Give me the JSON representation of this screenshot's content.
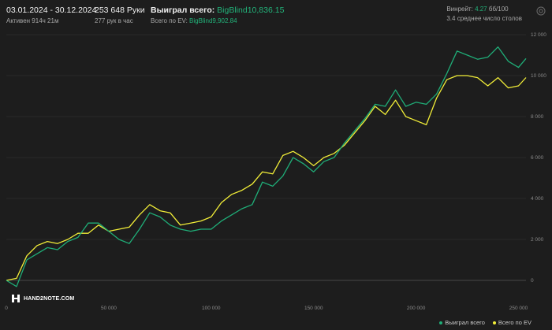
{
  "header": {
    "date_range": "03.01.2024 - 30.12.2024",
    "active_time": "Активен 914ч 21м",
    "hands": "253 648 Руки",
    "hands_per_hour": "277 рук в час",
    "won_label": "Выиграл всего:",
    "won_value": "BigBlind10,836.15",
    "ev_label": "Всего по EV:",
    "ev_value": "BigBlind9,902.84",
    "winrate_label": "Винрейт:",
    "winrate_value": "4.27",
    "winrate_unit": "бб/100",
    "avg_tables": "3.4 среднее число столов"
  },
  "logo": {
    "text": "HAND2NOTE.COM"
  },
  "colors": {
    "won": "#1fae78",
    "ev": "#f2ee38",
    "background": "#1d1d1d",
    "grid": "#2e2e2e",
    "axis_text": "#8a8a8a"
  },
  "chart_data": {
    "type": "line",
    "xlim": [
      0,
      253648
    ],
    "ylim": [
      -1000,
      12000
    ],
    "x_ticks": [
      "0",
      "50 000",
      "100 000",
      "150 000",
      "200 000",
      "250 000"
    ],
    "x_tick_values": [
      0,
      50000,
      100000,
      150000,
      200000,
      250000
    ],
    "y_ticks": [
      "0",
      "2 000",
      "4 000",
      "6 000",
      "8 000",
      "10 000",
      "12 000"
    ],
    "y_tick_values": [
      0,
      2000,
      4000,
      6000,
      8000,
      10000,
      12000
    ],
    "grid": true,
    "legend_position": "bottom-right",
    "series": [
      {
        "name": "Выиграл всего",
        "x": [
          0,
          5000,
          10000,
          15000,
          20000,
          25000,
          30000,
          35000,
          40000,
          45000,
          50000,
          55000,
          60000,
          65000,
          70000,
          75000,
          80000,
          85000,
          90000,
          95000,
          100000,
          105000,
          110000,
          115000,
          120000,
          125000,
          130000,
          135000,
          140000,
          145000,
          150000,
          155000,
          160000,
          165000,
          170000,
          175000,
          180000,
          185000,
          190000,
          195000,
          200000,
          205000,
          210000,
          215000,
          220000,
          225000,
          230000,
          235000,
          240000,
          245000,
          250000,
          253648
        ],
        "values": [
          0,
          -300,
          1000,
          1300,
          1600,
          1500,
          1900,
          2100,
          2800,
          2800,
          2400,
          2000,
          1800,
          2500,
          3300,
          3100,
          2700,
          2500,
          2400,
          2500,
          2500,
          2900,
          3200,
          3500,
          3700,
          4800,
          4600,
          5100,
          6000,
          5700,
          5300,
          5800,
          6000,
          6700,
          7300,
          7900,
          8600,
          8500,
          9300,
          8500,
          8700,
          8600,
          9100,
          10100,
          11200,
          11000,
          10800,
          10900,
          11400,
          10700,
          10400,
          10836
        ]
      },
      {
        "name": "Всего по EV",
        "x": [
          0,
          5000,
          10000,
          15000,
          20000,
          25000,
          30000,
          35000,
          40000,
          45000,
          50000,
          55000,
          60000,
          65000,
          70000,
          75000,
          80000,
          85000,
          90000,
          95000,
          100000,
          105000,
          110000,
          115000,
          120000,
          125000,
          130000,
          135000,
          140000,
          145000,
          150000,
          155000,
          160000,
          165000,
          170000,
          175000,
          180000,
          185000,
          190000,
          195000,
          200000,
          205000,
          210000,
          215000,
          220000,
          225000,
          230000,
          235000,
          240000,
          245000,
          250000,
          253648
        ],
        "values": [
          0,
          100,
          1200,
          1700,
          1900,
          1800,
          2000,
          2300,
          2300,
          2700,
          2400,
          2500,
          2600,
          3200,
          3700,
          3400,
          3300,
          2700,
          2800,
          2900,
          3100,
          3800,
          4200,
          4400,
          4700,
          5300,
          5200,
          6100,
          6300,
          6000,
          5600,
          6000,
          6200,
          6600,
          7200,
          7800,
          8500,
          8100,
          8800,
          8000,
          7800,
          7600,
          8900,
          9800,
          10000,
          10000,
          9900,
          9500,
          9900,
          9400,
          9500,
          9903
        ]
      }
    ]
  }
}
